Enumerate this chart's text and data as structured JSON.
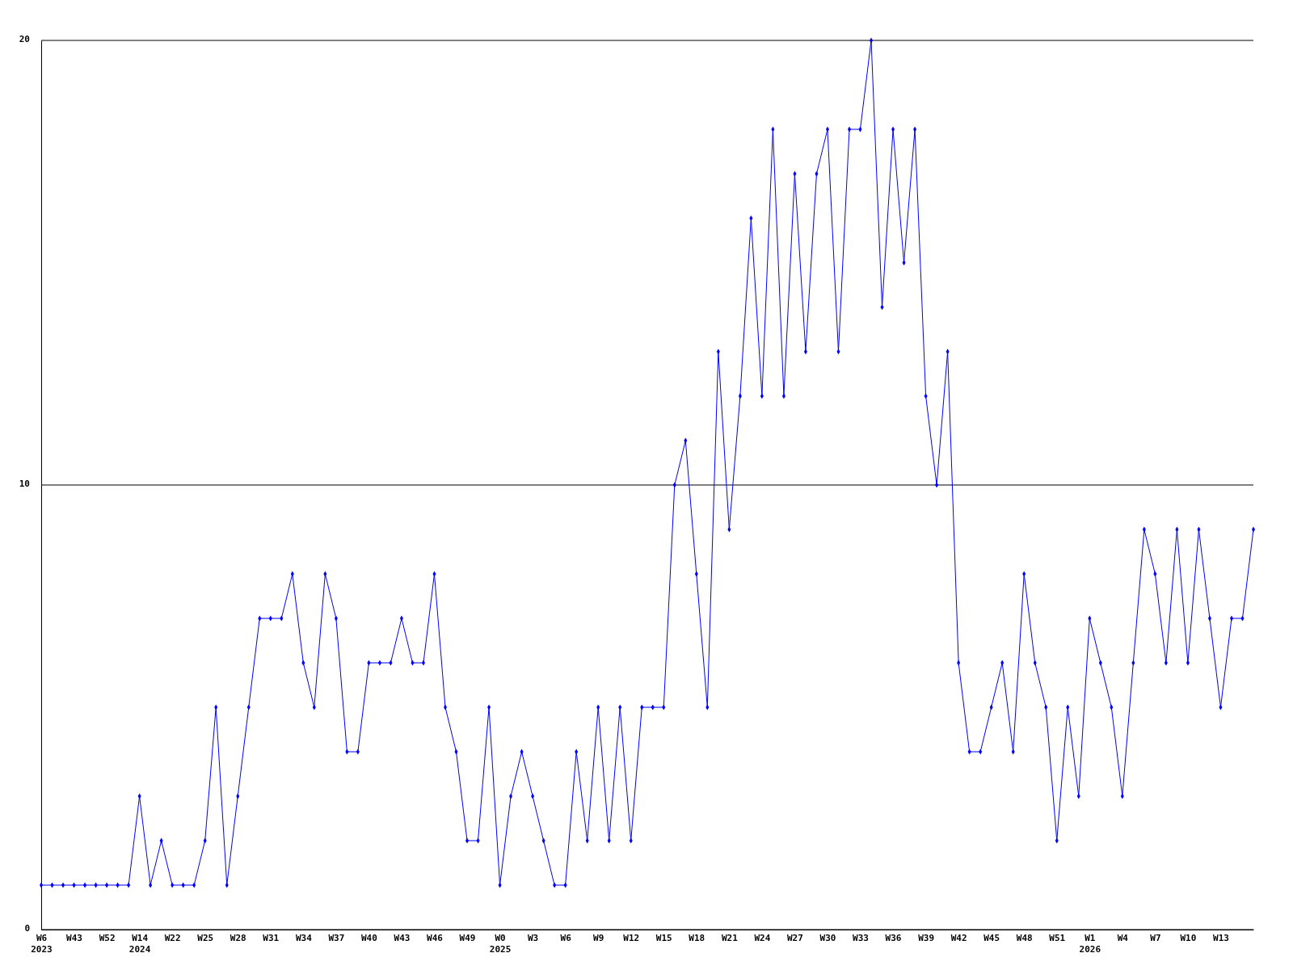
{
  "chart_data": {
    "type": "line",
    "categories": [
      "W6\n2023",
      null,
      null,
      "W43",
      null,
      null,
      "W52",
      null,
      null,
      "W14\n2024",
      null,
      null,
      "W22",
      null,
      null,
      "W25",
      null,
      null,
      "W28",
      null,
      null,
      "W31",
      null,
      null,
      "W34",
      null,
      null,
      "W37",
      null,
      null,
      "W40",
      null,
      null,
      "W43",
      null,
      null,
      "W46",
      null,
      null,
      "W49",
      null,
      null,
      "W0\n2025",
      null,
      null,
      "W3",
      null,
      null,
      "W6",
      null,
      null,
      "W9",
      null,
      null,
      "W12",
      null,
      null,
      "W15",
      null,
      null,
      "W18",
      null,
      null,
      "W21",
      null,
      null,
      "W24",
      null,
      null,
      "W27",
      null,
      null,
      "W30",
      null,
      null,
      "W33",
      null,
      null,
      "W36",
      null,
      null,
      "W39",
      null,
      null,
      "W42",
      null,
      null,
      "W45",
      null,
      null,
      "W48",
      null,
      null,
      "W51",
      null,
      null,
      "W1\n2026",
      null,
      null,
      "W4",
      null,
      null,
      "W7",
      null,
      null,
      "W10",
      null,
      null,
      "W13",
      null,
      null,
      null
    ],
    "series": [
      {
        "color": "#0000ff",
        "values": [
          1,
          1,
          1,
          1,
          1,
          1,
          1,
          1,
          1,
          3,
          1,
          2,
          1,
          1,
          1,
          2,
          5,
          1,
          3,
          5,
          7,
          7,
          7,
          8,
          6,
          5,
          8,
          7,
          4,
          4,
          6,
          6,
          6,
          7,
          6,
          6,
          8,
          5,
          4,
          2,
          2,
          5,
          1,
          3,
          4,
          3,
          2,
          1,
          1,
          4,
          2,
          5,
          2,
          5,
          2,
          5,
          5,
          5,
          10,
          11,
          8,
          5,
          13,
          9,
          12,
          16,
          12,
          18,
          12,
          17,
          13,
          17,
          18,
          13,
          18,
          18,
          20,
          14,
          18,
          15,
          18,
          12,
          10,
          13,
          6,
          4,
          4,
          5,
          6,
          4,
          8,
          6,
          5,
          2,
          5,
          3,
          7,
          6,
          5,
          3,
          6,
          9,
          8,
          6,
          9,
          6,
          9,
          7,
          5,
          7,
          7,
          9
        ]
      }
    ],
    "ylim": [
      0,
      20
    ],
    "yticks": [
      0,
      10,
      20
    ],
    "grid": "y",
    "marker": "diamond",
    "line_style": "solid"
  }
}
